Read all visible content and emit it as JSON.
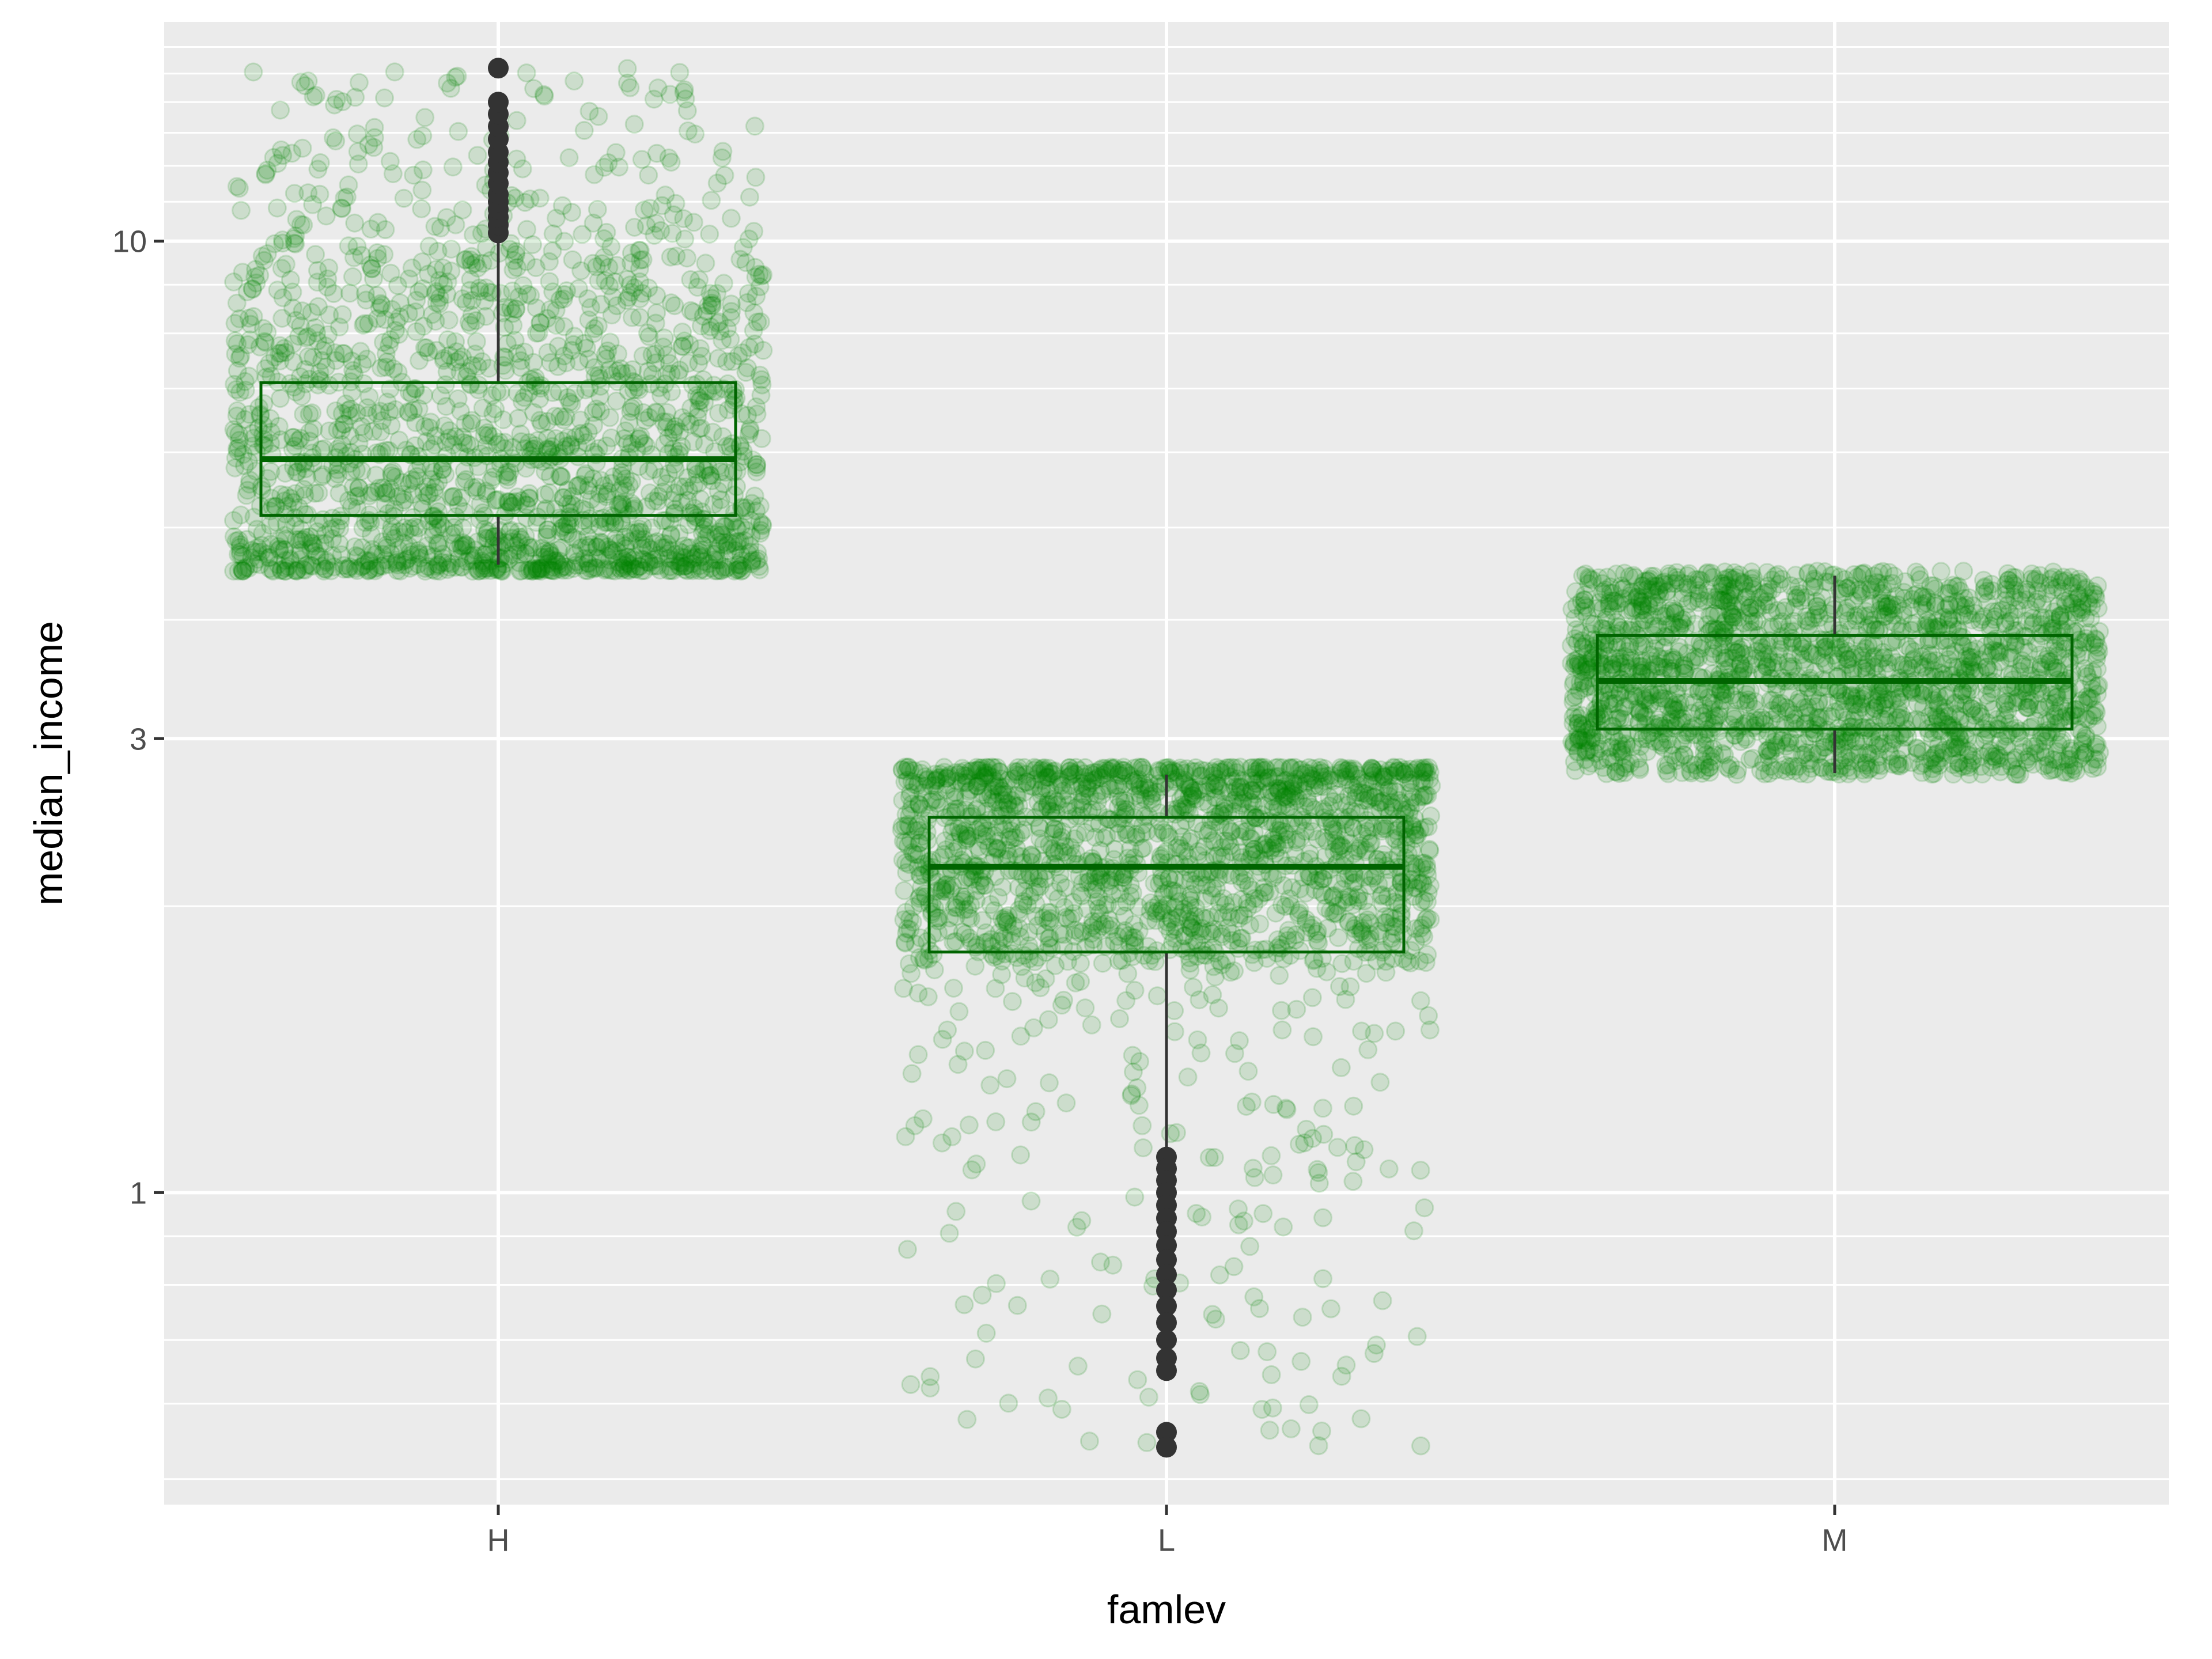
{
  "chart_data": {
    "type": "boxplot",
    "xlabel": "famlev",
    "ylabel": "median_income",
    "categories": [
      "H",
      "L",
      "M"
    ],
    "y_scale": "log10",
    "ylim": [
      0.47,
      17
    ],
    "y_ticks": [
      {
        "value": 1,
        "label": "1"
      },
      {
        "value": 3,
        "label": "3"
      },
      {
        "value": 10,
        "label": "10"
      }
    ],
    "grid": true,
    "legend": "none",
    "colors": {
      "panel_background": "#ebebeb",
      "grid_line": "#ffffff",
      "points": "#008000",
      "box_outline": "#006400",
      "outlier": "#333333",
      "whisker": "#333333"
    },
    "boxes": [
      {
        "category": "H",
        "q1": 5.15,
        "median": 5.9,
        "q3": 7.1,
        "whisker_low": 4.57,
        "whisker_high": 10.2,
        "outliers": [
          10.2,
          10.4,
          10.6,
          10.8,
          11.0,
          11.2,
          11.5,
          11.8,
          12.1,
          12.4,
          12.8,
          13.2,
          13.6,
          14.0,
          15.2
        ]
      },
      {
        "category": "L",
        "q1": 1.79,
        "median": 2.2,
        "q3": 2.48,
        "whisker_low": 1.1,
        "whisker_high": 2.75,
        "outliers": [
          1.09,
          1.06,
          1.03,
          1.0,
          0.97,
          0.94,
          0.91,
          0.88,
          0.85,
          0.82,
          0.79,
          0.76,
          0.73,
          0.7,
          0.67,
          0.65,
          0.56,
          0.54
        ]
      },
      {
        "category": "M",
        "q1": 3.07,
        "median": 3.45,
        "q3": 3.85,
        "whisker_low": 2.76,
        "whisker_high": 4.45,
        "outliers": []
      }
    ],
    "jitter_points": [
      {
        "category": "H",
        "count": 1900,
        "range": [
          4.5,
          15.2
        ],
        "concentrated_range": [
          4.5,
          9.5
        ]
      },
      {
        "category": "L",
        "count": 1900,
        "range": [
          0.54,
          2.8
        ],
        "concentrated_range": [
          1.75,
          2.8
        ]
      },
      {
        "category": "M",
        "count": 2000,
        "range": [
          2.75,
          4.5
        ],
        "concentrated_range": [
          2.75,
          4.5
        ]
      }
    ]
  }
}
